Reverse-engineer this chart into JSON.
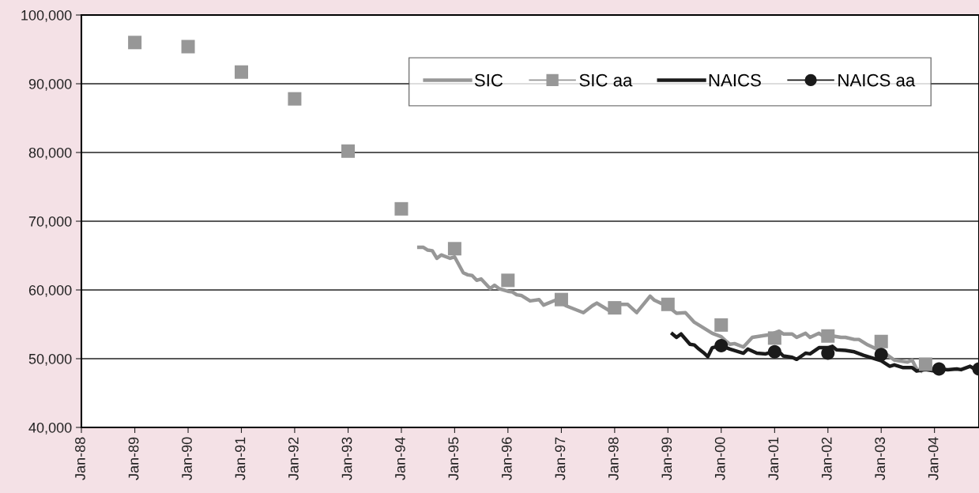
{
  "chart_data": {
    "type": "line",
    "xlim": [
      "1988-01",
      "2004-11"
    ],
    "xticks": [
      {
        "value": "1988-01",
        "label": "Jan-88"
      },
      {
        "value": "1989-01",
        "label": "Jan-89"
      },
      {
        "value": "1990-01",
        "label": "Jan-90"
      },
      {
        "value": "1991-01",
        "label": "Jan-91"
      },
      {
        "value": "1992-01",
        "label": "Jan-92"
      },
      {
        "value": "1993-01",
        "label": "Jan-93"
      },
      {
        "value": "1994-01",
        "label": "Jan-94"
      },
      {
        "value": "1995-01",
        "label": "Jan-95"
      },
      {
        "value": "1996-01",
        "label": "Jan-96"
      },
      {
        "value": "1997-01",
        "label": "Jan-97"
      },
      {
        "value": "1998-01",
        "label": "Jan-98"
      },
      {
        "value": "1999-01",
        "label": "Jan-99"
      },
      {
        "value": "2000-01",
        "label": "Jan-00"
      },
      {
        "value": "2001-01",
        "label": "Jan-01"
      },
      {
        "value": "2002-01",
        "label": "Jan-02"
      },
      {
        "value": "2003-01",
        "label": "Jan-03"
      },
      {
        "value": "2004-01",
        "label": "Jan-04"
      }
    ],
    "ylim": [
      40000,
      100000
    ],
    "yticks": [
      {
        "value": 40000,
        "label": "40,000"
      },
      {
        "value": 50000,
        "label": "50,000"
      },
      {
        "value": 60000,
        "label": "60,000"
      },
      {
        "value": 70000,
        "label": "70,000"
      },
      {
        "value": 80000,
        "label": "80,000"
      },
      {
        "value": 90000,
        "label": "90,000"
      },
      {
        "value": 100000,
        "label": "100,000"
      }
    ],
    "grid": "y",
    "legend": "top right",
    "series": [
      {
        "name": "SIC",
        "color": "#979797",
        "marker": "none",
        "x": [
          "1994-05",
          "1994-06",
          "1994-07",
          "1994-08",
          "1994-09",
          "1994-10",
          "1994-12",
          "1995-01",
          "1995-03",
          "1995-04",
          "1995-05",
          "1995-06",
          "1995-07",
          "1995-09",
          "1995-10",
          "1995-11",
          "1996-01",
          "1996-02",
          "1996-03",
          "1996-04",
          "1996-06",
          "1996-08",
          "1996-09",
          "1996-12",
          "1997-02",
          "1997-06",
          "1997-08",
          "1997-09",
          "1997-12",
          "1998-01",
          "1998-04",
          "1998-06",
          "1998-09",
          "1998-10",
          "1999-01",
          "1999-03",
          "1999-05",
          "1999-07",
          "1999-08",
          "1999-11",
          "2000-01",
          "2000-02",
          "2000-03",
          "2000-04",
          "2000-06",
          "2000-08",
          "2000-10",
          "2000-12",
          "2001-02",
          "2001-03",
          "2001-05",
          "2001-06",
          "2001-08",
          "2001-09",
          "2001-11",
          "2001-12",
          "2002-02",
          "2002-04",
          "2002-05",
          "2002-07",
          "2002-08",
          "2002-10",
          "2002-12",
          "2003-02",
          "2003-04",
          "2003-07",
          "2003-08",
          "2003-09",
          "2003-10"
        ],
        "values": [
          66200,
          66200,
          65800,
          65700,
          64600,
          65100,
          64600,
          64800,
          62500,
          62200,
          62100,
          61400,
          61600,
          60200,
          60700,
          60200,
          59800,
          59700,
          59300,
          59200,
          58400,
          58600,
          57800,
          58600,
          57700,
          56700,
          57700,
          58100,
          56900,
          57900,
          57900,
          56700,
          59100,
          58500,
          57600,
          56600,
          56700,
          55300,
          54900,
          53700,
          53200,
          52600,
          52100,
          52200,
          51700,
          53100,
          53300,
          53500,
          54000,
          53600,
          53600,
          53100,
          53700,
          53100,
          53700,
          53300,
          53300,
          53100,
          53100,
          52800,
          52800,
          52000,
          51400,
          50700,
          49800,
          49500,
          49800,
          48500,
          48200
        ]
      },
      {
        "name": "SIC aa",
        "type": "scatter",
        "color": "#979797",
        "marker": "square",
        "x": [
          "1989-01",
          "1990-01",
          "1991-01",
          "1992-01",
          "1993-01",
          "1994-01",
          "1995-01",
          "1996-01",
          "1997-01",
          "1998-01",
          "1999-01",
          "2000-01",
          "2001-01",
          "2002-01",
          "2003-01",
          "2003-11"
        ],
        "values": [
          96000,
          95400,
          91700,
          87800,
          80200,
          71800,
          66000,
          61400,
          58600,
          57400,
          57900,
          54900,
          53000,
          53300,
          52500,
          49200
        ]
      },
      {
        "name": "NAICS",
        "color": "#1a1a1a",
        "marker": "none",
        "x": [
          "1999-02",
          "1999-03",
          "1999-04",
          "1999-06",
          "1999-07",
          "1999-08",
          "1999-09",
          "1999-10",
          "1999-11",
          "2000-01",
          "2000-03",
          "2000-04",
          "2000-06",
          "2000-07",
          "2000-09",
          "2000-11",
          "2000-12",
          "2001-02",
          "2001-03",
          "2001-05",
          "2001-06",
          "2001-08",
          "2001-09",
          "2001-11",
          "2002-01",
          "2002-02",
          "2002-03",
          "2002-05",
          "2002-07",
          "2002-09",
          "2002-11",
          "2003-01",
          "2003-03",
          "2003-04",
          "2003-06",
          "2003-08",
          "2003-09",
          "2003-11",
          "2004-01",
          "2004-02",
          "2004-04",
          "2004-06",
          "2004-07",
          "2004-09",
          "2004-10"
        ],
        "values": [
          53600,
          53100,
          53600,
          52100,
          52000,
          51400,
          50900,
          50300,
          51600,
          51900,
          51400,
          51200,
          50800,
          51400,
          50800,
          50700,
          50900,
          51000,
          50400,
          50200,
          49900,
          50800,
          50700,
          51600,
          51600,
          51800,
          51300,
          51200,
          51000,
          50500,
          50100,
          49700,
          48900,
          49100,
          48700,
          48700,
          48200,
          48400,
          48200,
          48500,
          48400,
          48500,
          48400,
          48900,
          48500
        ]
      },
      {
        "name": "NAICS aa",
        "type": "scatter",
        "color": "#1a1a1a",
        "marker": "circle",
        "x": [
          "2000-01",
          "2001-01",
          "2002-01",
          "2003-01",
          "2004-02",
          "2004-11"
        ],
        "values": [
          51900,
          51000,
          50800,
          50600,
          48500,
          48500
        ]
      }
    ]
  }
}
